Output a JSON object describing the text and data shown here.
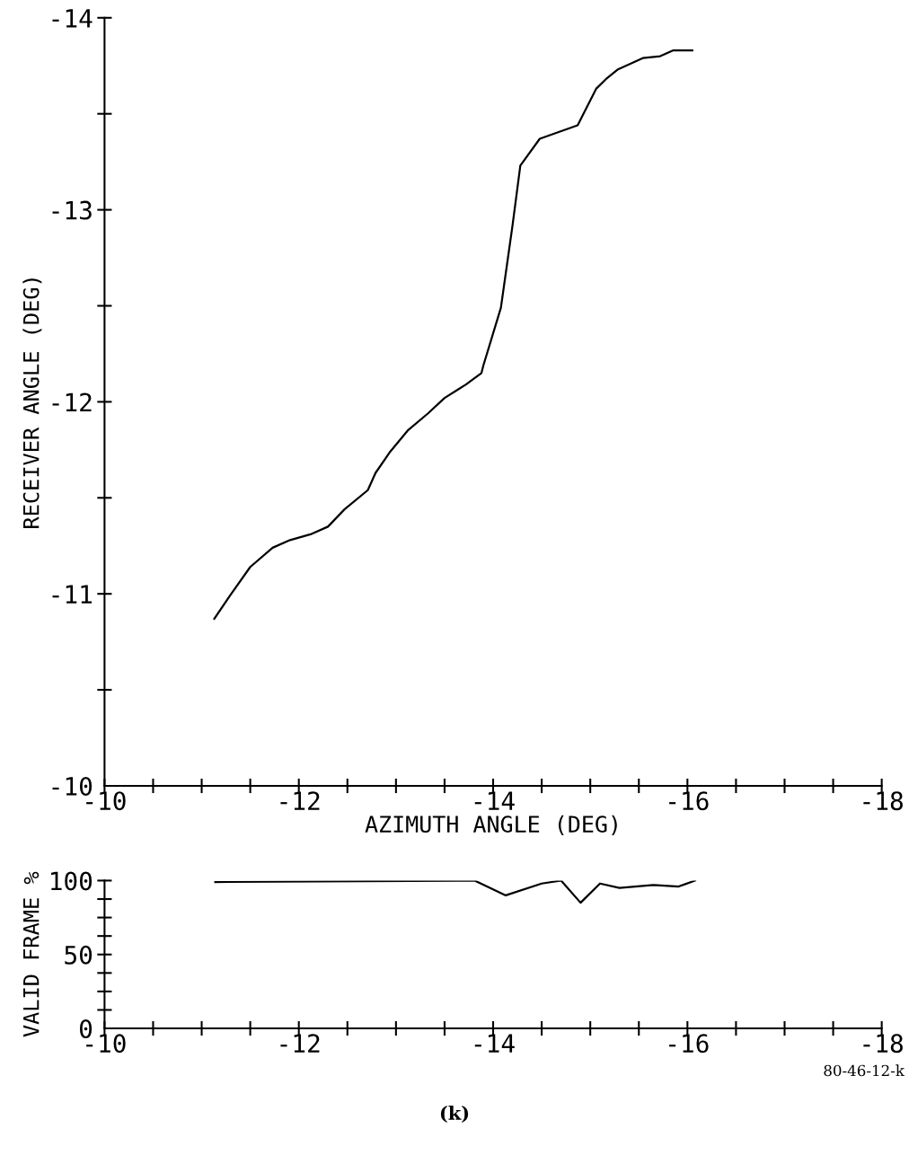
{
  "chart_data": [
    {
      "type": "line",
      "xlabel": "AZIMUTH ANGLE (DEG)",
      "ylabel": "RECEIVER ANGLE (DEG)",
      "x": [
        -11.13,
        -11.29,
        -11.5,
        -11.73,
        -11.91,
        -12.12,
        -12.3,
        -12.47,
        -12.71,
        -12.79,
        -12.94,
        -13.12,
        -13.33,
        -13.5,
        -13.72,
        -13.88,
        -13.9,
        -14.08,
        -14.2,
        -14.28,
        -14.48,
        -14.87,
        -15.06,
        -15.16,
        -15.28,
        -15.54,
        -15.72,
        -15.85,
        -16.05
      ],
      "series": [
        {
          "color": "#000000",
          "values": [
            -10.87,
            -10.99,
            -11.14,
            -11.24,
            -11.28,
            -11.31,
            -11.35,
            -11.44,
            -11.54,
            -11.63,
            -11.74,
            -11.85,
            -11.94,
            -12.02,
            -12.09,
            -12.15,
            -12.19,
            -12.49,
            -12.92,
            -13.23,
            -13.37,
            -13.44,
            -13.63,
            -13.68,
            -13.73,
            -13.79,
            -13.8,
            -13.83,
            -13.83
          ]
        }
      ],
      "xlim": [
        -10,
        -18
      ],
      "ylim": [
        -10,
        -14
      ],
      "xticks": [
        -10,
        {
          "value": -10.5,
          "label": null
        },
        {
          "value": -11,
          "label": null
        },
        {
          "value": -11.5,
          "label": null
        },
        -12,
        {
          "value": -12.5,
          "label": null
        },
        {
          "value": -13,
          "label": null
        },
        {
          "value": -13.5,
          "label": null
        },
        -14,
        {
          "value": -14.5,
          "label": null
        },
        {
          "value": -15,
          "label": null
        },
        {
          "value": -15.5,
          "label": null
        },
        -16,
        {
          "value": -16.5,
          "label": null
        },
        {
          "value": -17,
          "label": null
        },
        {
          "value": -17.5,
          "label": null
        },
        -18
      ],
      "yticks": [
        -10,
        {
          "value": -10.5,
          "label": null
        },
        -11,
        {
          "value": -11.5,
          "label": null
        },
        -12,
        {
          "value": -12.5,
          "label": null
        },
        -13,
        {
          "value": -13.5,
          "label": null
        },
        -14
      ],
      "grid": false
    },
    {
      "type": "line",
      "ylabel": "VALID FRAME %",
      "x": [
        -11.14,
        -13.81,
        -14.13,
        -14.5,
        -14.7,
        -14.9,
        -15.1,
        -15.3,
        -15.65,
        -15.91,
        -16.08
      ],
      "series": [
        {
          "color": "#000000",
          "values": [
            99,
            100,
            90,
            98,
            100,
            85,
            98,
            95,
            97,
            96,
            100
          ]
        }
      ],
      "xlim": [
        -10,
        -18
      ],
      "ylim": [
        0,
        100
      ],
      "xticks": [
        -10,
        {
          "value": -10.5,
          "label": null
        },
        {
          "value": -11,
          "label": null
        },
        {
          "value": -11.5,
          "label": null
        },
        -12,
        {
          "value": -12.5,
          "label": null
        },
        {
          "value": -13,
          "label": null
        },
        {
          "value": -13.5,
          "label": null
        },
        -14,
        {
          "value": -14.5,
          "label": null
        },
        {
          "value": -15,
          "label": null
        },
        {
          "value": -15.5,
          "label": null
        },
        -16,
        {
          "value": -16.5,
          "label": null
        },
        {
          "value": -17,
          "label": null
        },
        {
          "value": -17.5,
          "label": null
        },
        -18
      ],
      "yticks": [
        0,
        {
          "value": 12.5,
          "label": null
        },
        {
          "value": 25,
          "label": null
        },
        {
          "value": 37.5,
          "label": null
        },
        50,
        {
          "value": 62.5,
          "label": null
        },
        {
          "value": 75,
          "label": null
        },
        {
          "value": 87.5,
          "label": null
        },
        100
      ],
      "annotations": [
        "80-46-12-k",
        "(k)"
      ],
      "grid": false
    }
  ]
}
